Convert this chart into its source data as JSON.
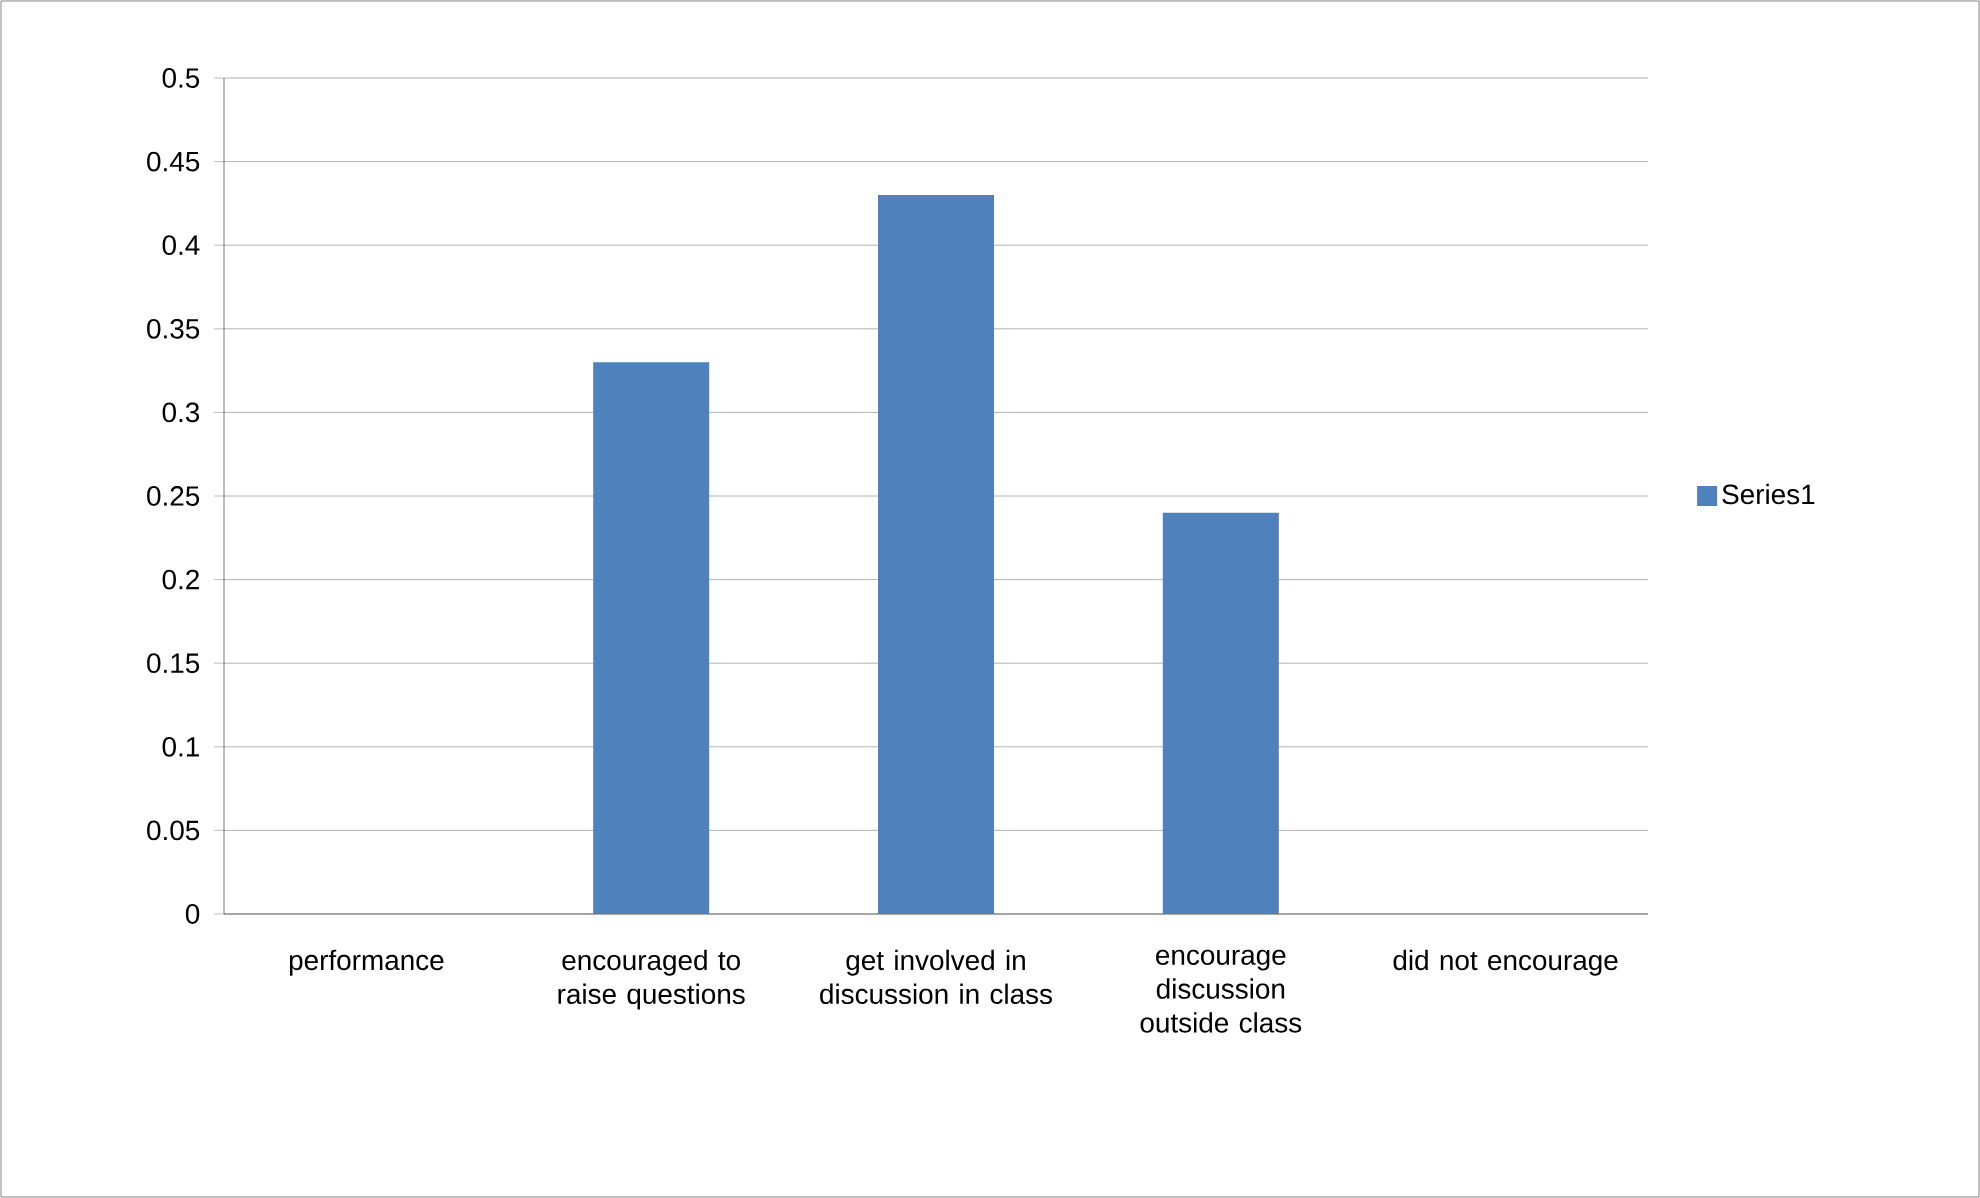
{
  "chart_data": {
    "type": "bar",
    "categories": [
      "performance",
      "encouraged to raise questions",
      "get involved in discussion in class",
      "encourage discussion outside class",
      "did not encourage"
    ],
    "series": [
      {
        "name": "Series1",
        "color": "#4f81bd",
        "values": [
          0,
          0.33,
          0.43,
          0.24,
          0
        ]
      }
    ],
    "ylim": [
      0,
      0.5
    ],
    "yticks": [
      0,
      0.05,
      0.1,
      0.15,
      0.2,
      0.25,
      0.3,
      0.35,
      0.4,
      0.45,
      0.5
    ],
    "grid": "y",
    "legend": "right"
  }
}
